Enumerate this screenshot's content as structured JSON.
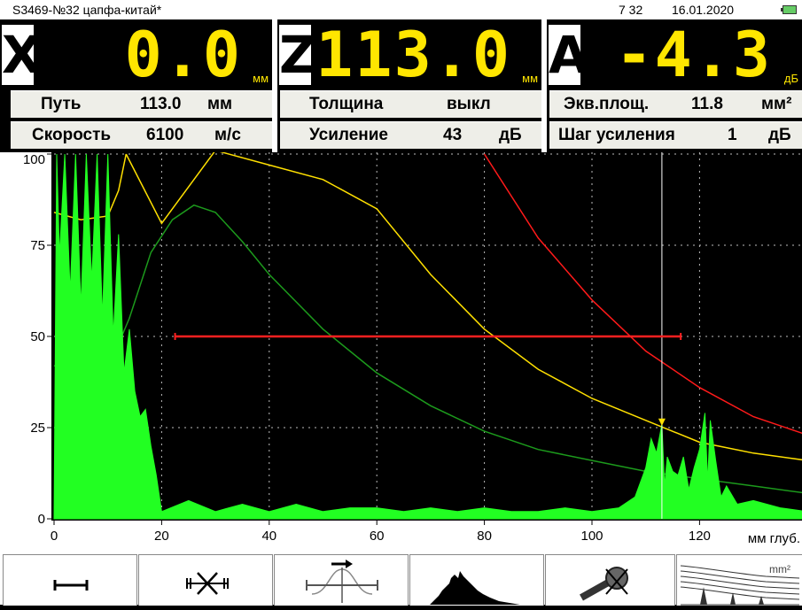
{
  "status": {
    "title": "S3469-№32 цапфа-китай*",
    "time": "7 32",
    "date": "16.01.2020",
    "battery_icon": "battery-icon"
  },
  "readouts": [
    {
      "letter": "X",
      "value": "0.0",
      "unit": "мм"
    },
    {
      "letter": "Z",
      "value": "113.0",
      "unit": "мм"
    },
    {
      "letter": "A",
      "value": "-4.3",
      "unit": "дБ"
    }
  ],
  "params": {
    "path": {
      "label": "Путь",
      "value": "113.0",
      "unit": "мм"
    },
    "speed": {
      "label": "Скорость",
      "value": "6100",
      "unit": "м/с"
    },
    "thickness": {
      "label": "Толщина",
      "value": "выкл"
    },
    "gain": {
      "label": "Усиление",
      "value": "43",
      "unit": "дБ"
    },
    "eq_area": {
      "label": "Экв.площ.",
      "value": "11.8",
      "unit": "мм²"
    },
    "gain_step": {
      "label": "Шаг усиления",
      "value": "1",
      "unit": "дБ"
    }
  },
  "colors": {
    "signal": "#22ff22",
    "gate": "#ff2020",
    "dac_red": "#ff1a1a",
    "dac_yellow": "#ffe000",
    "dac_green": "#1c9a1c",
    "cursor": "#ffffff",
    "value_yellow": "#ffe600"
  },
  "chart_data": {
    "type": "line",
    "xlabel": "мм глуб.",
    "x_ticks": [
      "0",
      "20",
      "40",
      "60",
      "80",
      "100",
      "120"
    ],
    "y_ticks": [
      "0",
      "25",
      "50",
      "75",
      "100"
    ],
    "xlim": [
      0,
      140
    ],
    "ylim": [
      0,
      100
    ],
    "grid": true,
    "gate": {
      "x_start": 22.5,
      "x_end": 116.5,
      "level": 50
    },
    "cursor_x": 113,
    "series": [
      {
        "color": "#ff1a1a",
        "x": [
          80,
          90,
          100,
          110,
          120,
          130,
          140
        ],
        "y": [
          100,
          77,
          60,
          46,
          36,
          28,
          23
        ]
      },
      {
        "color": "#ffe000",
        "x": [
          13.4,
          20,
          30,
          40,
          50,
          60,
          70,
          80,
          90,
          100,
          110,
          120,
          130,
          140
        ],
        "y": [
          100,
          81,
          101,
          97,
          93,
          85,
          67,
          52,
          41,
          33,
          27,
          21,
          18,
          16
        ]
      },
      {
        "color": "#ffe000",
        "x": [
          0,
          5,
          10,
          12,
          13.4
        ],
        "y": [
          84,
          82,
          83,
          90,
          100
        ]
      },
      {
        "color": "#1c9a1c",
        "x": [
          0,
          5,
          10,
          14,
          18,
          22,
          26,
          30,
          35,
          40,
          50,
          60,
          70,
          80,
          90,
          100,
          110,
          120,
          130,
          140
        ],
        "y": [
          42,
          40,
          41,
          55,
          73,
          82,
          86,
          84,
          76,
          67,
          52,
          40,
          31,
          24,
          19,
          16,
          13,
          11,
          9,
          7
        ]
      },
      {
        "color": "#22ff22",
        "x": [
          0,
          0.5,
          1,
          2,
          3,
          4,
          5,
          6,
          7,
          8,
          9,
          10,
          11,
          12,
          13,
          14,
          15,
          16,
          17,
          18,
          19,
          20,
          25,
          30,
          35,
          40,
          45,
          50,
          55,
          60,
          65,
          70,
          75,
          80,
          85,
          90,
          95,
          100,
          105,
          108,
          110,
          111,
          112,
          113,
          113.5,
          114,
          115,
          116,
          117,
          118,
          119,
          120,
          121,
          121.5,
          122,
          123,
          124,
          125,
          127,
          130,
          135,
          140
        ],
        "y": [
          0,
          100,
          72,
          100,
          62,
          100,
          58,
          100,
          65,
          100,
          55,
          100,
          50,
          78,
          40,
          52,
          35,
          28,
          30,
          20,
          12,
          2,
          5,
          2,
          4,
          2,
          4,
          2,
          3,
          3,
          2,
          3,
          2,
          3,
          2,
          2,
          3,
          2,
          3,
          6,
          14,
          22,
          18,
          26,
          9,
          17,
          13,
          12,
          17,
          8,
          14,
          19,
          29,
          10,
          27,
          16,
          6,
          9,
          4,
          5,
          3,
          2
        ]
      }
    ]
  },
  "toolbar": [
    {
      "name": "gate-width-icon"
    },
    {
      "name": "gate-position-icon"
    },
    {
      "name": "gate-shift-icon"
    },
    {
      "name": "envelope-icon"
    },
    {
      "name": "probe-off-icon"
    },
    {
      "name": "dac-curves-icon",
      "label": "mm²"
    }
  ]
}
